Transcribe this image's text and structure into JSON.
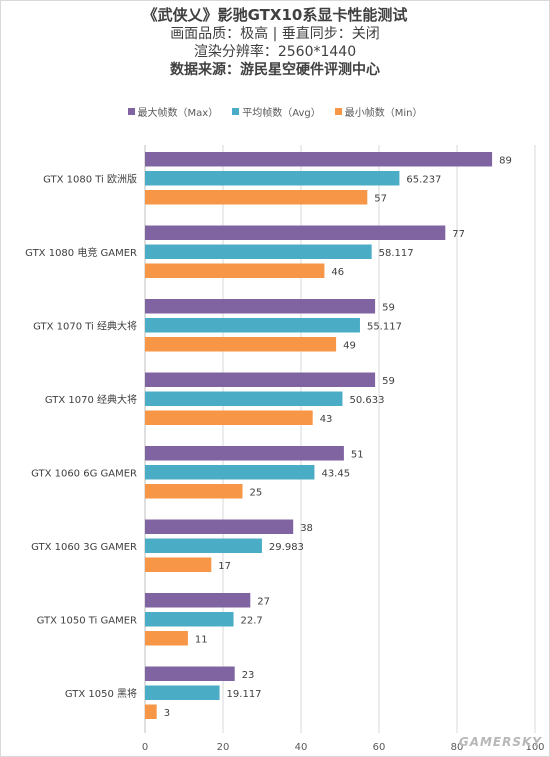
{
  "header": {
    "title": "《武侠乂》影驰GTX10系显卡性能测试",
    "line2": "画面品质：极高 | 垂直同步：关闭",
    "line3": "渲染分辨率：2560*1440",
    "line4": "数据来源：游民星空硬件评测中心"
  },
  "watermark": "GAMERSKY",
  "chart_data": {
    "type": "bar",
    "orientation": "horizontal",
    "title": "《武侠乂》影驰GTX10系显卡性能测试",
    "subtitle": [
      "画面品质：极高 | 垂直同步：关闭",
      "渲染分辨率：2560*1440",
      "数据来源：游民星空硬件评测中心"
    ],
    "categories": [
      "GTX 1080 Ti 欧洲版",
      "GTX 1080 电竞 GAMER",
      "GTX 1070 Ti 经典大将",
      "GTX 1070 经典大将",
      "GTX 1060 6G GAMER",
      "GTX 1060 3G GAMER",
      "GTX 1050 Ti GAMER",
      "GTX 1050 黑将"
    ],
    "series": [
      {
        "name": "最大帧数（Max）",
        "color": "#8064a2",
        "values": [
          89,
          77,
          59,
          59,
          51,
          38,
          27,
          23
        ],
        "labels": [
          "89",
          "77",
          "59",
          "59",
          "51",
          "38",
          "27",
          "23"
        ]
      },
      {
        "name": "平均帧数（Avg）",
        "color": "#4bacc6",
        "values": [
          65.237,
          58.117,
          55.117,
          50.633,
          43.45,
          29.983,
          22.7,
          19.117
        ],
        "labels": [
          "65.237",
          "58.117",
          "55.117",
          "50.633",
          "43.45",
          "29.983",
          "22.7",
          "19.117"
        ]
      },
      {
        "name": "最小帧数（Min）",
        "color": "#f79646",
        "values": [
          57,
          46,
          49,
          43,
          25,
          17,
          11,
          3
        ],
        "labels": [
          "57",
          "46",
          "49",
          "43",
          "25",
          "17",
          "11",
          "3"
        ]
      }
    ],
    "xlim": [
      0,
      100
    ],
    "xticks": [
      "0",
      "20",
      "40",
      "60",
      "80",
      "100"
    ],
    "grid": true,
    "legend": "top"
  }
}
